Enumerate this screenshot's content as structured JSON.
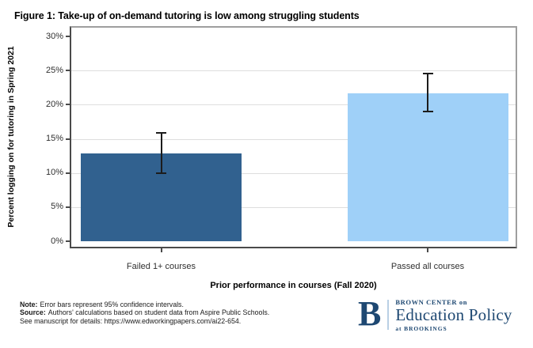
{
  "chart_data": {
    "type": "bar",
    "title": "Figure 1: Take-up of on-demand tutoring is low among struggling students",
    "categories": [
      "Failed 1+ courses",
      "Passed all courses"
    ],
    "values": [
      12.9,
      21.7
    ],
    "ci_low": [
      10.0,
      19.0
    ],
    "ci_high": [
      15.9,
      24.6
    ],
    "bar_colors": [
      "#31618F",
      "#9FD0F8"
    ],
    "xlabel": "Prior performance in courses (Fall 2020)",
    "ylabel": "Percent logging on for tutoring in Spring 2021",
    "ylim": [
      0,
      30
    ],
    "yticks": [
      0,
      5,
      10,
      15,
      20,
      25,
      30
    ],
    "ytick_labels": [
      "0%",
      "5%",
      "10%",
      "15%",
      "20%",
      "25%",
      "30%"
    ],
    "gridline_values": [
      5,
      10,
      15,
      20,
      25
    ],
    "grid": true,
    "legend": "none",
    "error_bars": "95% confidence intervals"
  },
  "notes": {
    "note_label": "Note:",
    "note_text": "Error bars represent 95% confidence intervals.",
    "source_label": "Source:",
    "source_text": "Authors' calculations based on student data from Aspire Public Schools.",
    "details_text": "See manuscript for details: https://www.edworkingpapers.com/ai22-654."
  },
  "logo": {
    "initial": "B",
    "top_line": "BROWN CENTER on",
    "main_line": "Education Policy",
    "bottom_line": "at BROOKINGS",
    "color": "#1E4872",
    "divider_color": "#B9D0E5"
  }
}
